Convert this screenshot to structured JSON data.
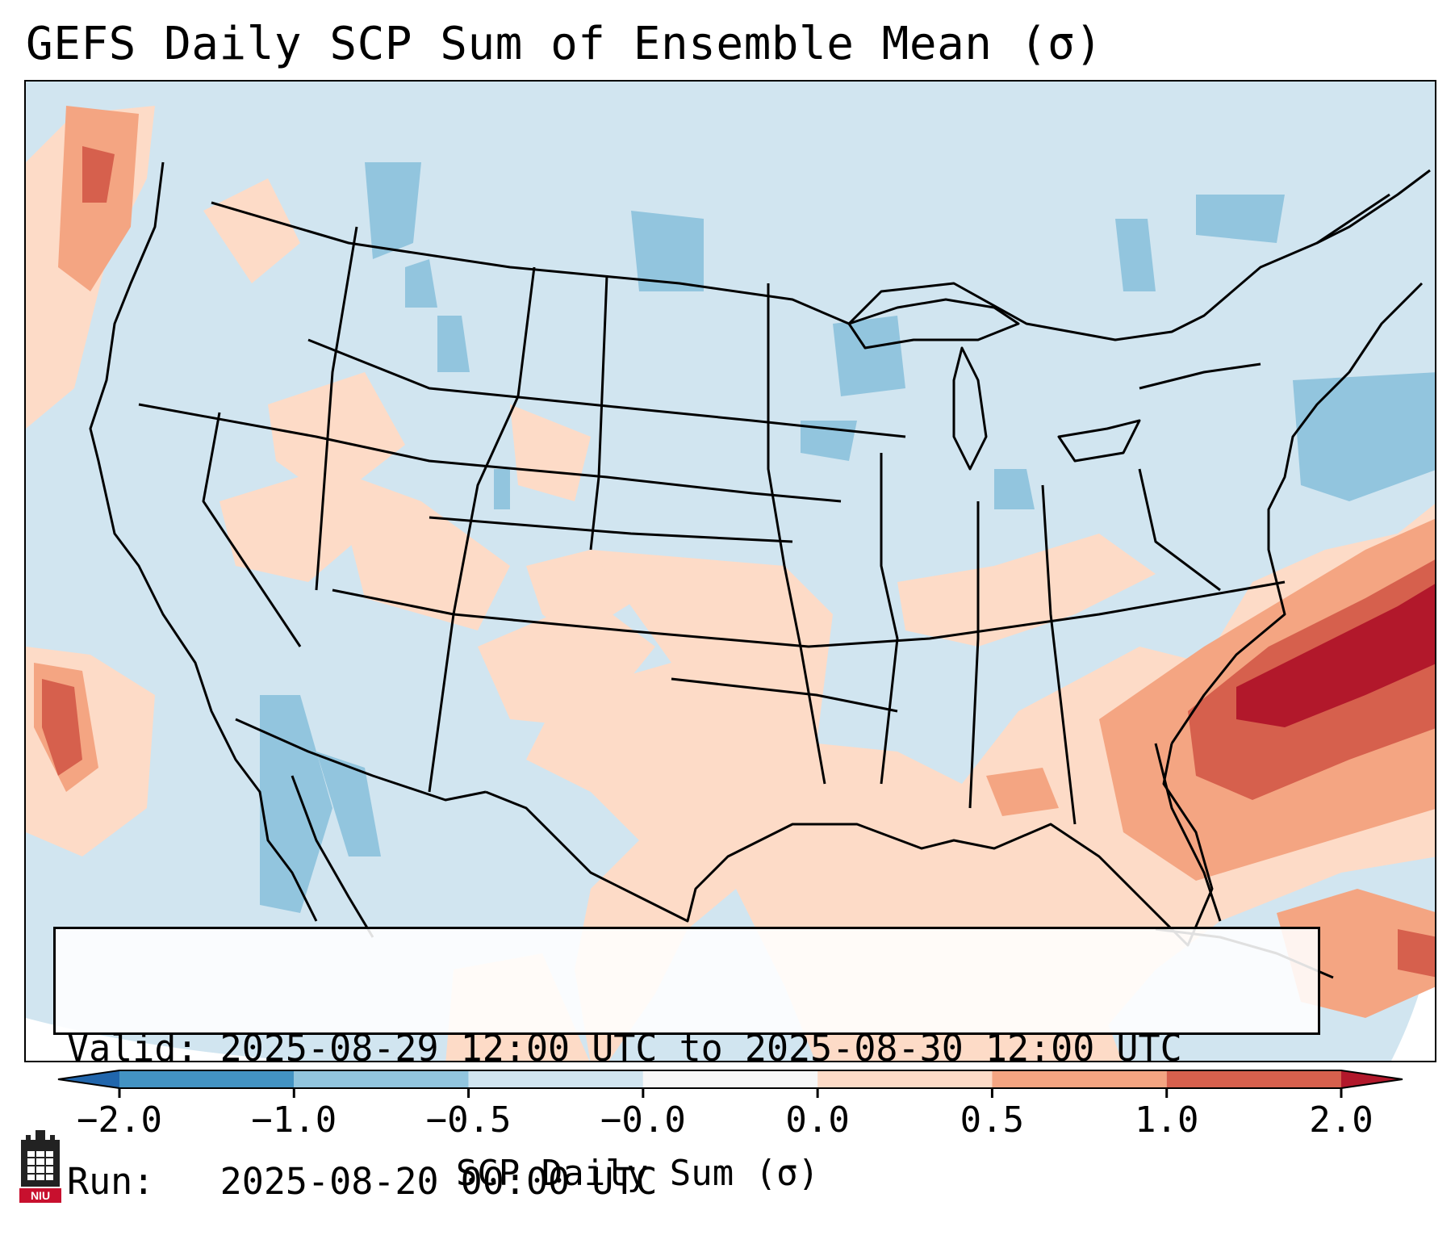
{
  "title": "GEFS Daily SCP Sum of Ensemble Mean (σ)",
  "info": {
    "valid_line": "Valid: 2025-08-29 12:00 UTC to 2025-08-30 12:00 UTC",
    "run_line": "Run:   2025-08-20 00:00 UTC"
  },
  "colorbar": {
    "label": "SCP Daily Sum (σ)",
    "ticks": [
      "−2.0",
      "−1.0",
      "−0.5",
      "−0.0",
      "0.0",
      "0.5",
      "1.0",
      "2.0"
    ],
    "bins": [
      {
        "range": "< -2.0",
        "color": "#2166ac"
      },
      {
        "range": "-2.0 to -1.0",
        "color": "#4393c3"
      },
      {
        "range": "-1.0 to -0.5",
        "color": "#92c5de"
      },
      {
        "range": "-0.5 to -0.0",
        "color": "#d1e5f0"
      },
      {
        "range": "-0.0 to 0.0",
        "color": "#f7f7f7"
      },
      {
        "range": "0.0 to 0.5",
        "color": "#fddbc7"
      },
      {
        "range": "0.5 to 1.0",
        "color": "#f4a582"
      },
      {
        "range": "1.0 to 2.0",
        "color": "#d6604d"
      },
      {
        "range": "> 2.0",
        "color": "#b2182b"
      }
    ]
  },
  "logo": {
    "text": "NIU",
    "colors": {
      "primary": "#c8102e",
      "secondary": "#000000"
    }
  },
  "map": {
    "background_color": "#d1e5f0",
    "outline_color": "#000000",
    "note": ""
  }
}
